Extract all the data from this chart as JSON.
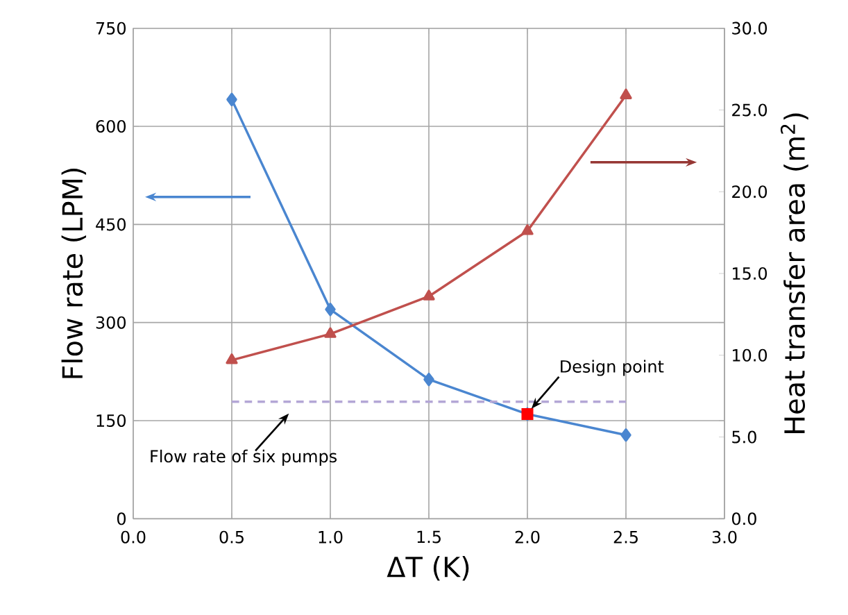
{
  "chart_data": {
    "type": "line",
    "xlabel": "ΔT (K)",
    "ylabel": "Flow rate (LPM)",
    "y2label": "Heat transfer area (m$^{2}$)",
    "xlim": [
      0,
      3
    ],
    "xticks": [
      {
        "value": 0,
        "label": "0.0"
      },
      {
        "value": 0.5,
        "label": "0.5"
      },
      {
        "value": 1,
        "label": "1.0"
      },
      {
        "value": 1.5,
        "label": "1.5"
      },
      {
        "value": 2,
        "label": "2.0"
      },
      {
        "value": 2.5,
        "label": "2.5"
      },
      {
        "value": 3,
        "label": "3.0"
      }
    ],
    "ylim": [
      0,
      750
    ],
    "yticks": [
      0,
      150,
      300,
      450,
      600,
      750
    ],
    "y2lim": [
      0,
      30
    ],
    "y2ticks": [
      {
        "value": 0,
        "label": "0.0"
      },
      {
        "value": 5,
        "label": "5.0"
      },
      {
        "value": 10,
        "label": "10.0"
      },
      {
        "value": 15,
        "label": "15.0"
      },
      {
        "value": 20,
        "label": "20.0"
      },
      {
        "value": 25,
        "label": "25.0"
      },
      {
        "value": 30,
        "label": "30.0"
      }
    ],
    "grid": true,
    "series": [
      {
        "color": "#4a86d0",
        "marker": "diamond",
        "x": [
          0.5,
          1,
          1.5,
          2,
          2.5
        ],
        "values": [
          641,
          320,
          213,
          160,
          128
        ]
      },
      {
        "color": "#c0504d",
        "marker": "triangle",
        "axis": "y2",
        "x": [
          0.5,
          1,
          1.5,
          2,
          2.5
        ],
        "values": [
          9.7,
          11.3,
          13.6,
          17.6,
          25.9
        ]
      },
      {
        "type": "line",
        "color": "#b4a7d6",
        "marker": "none",
        "line_style": "dashed",
        "x": [
          0.5,
          2.5
        ],
        "values": [
          179,
          179
        ]
      },
      {
        "type": "scatter",
        "color": "#ff0000",
        "marker": "square",
        "x": [
          2
        ],
        "values": [
          160
        ]
      }
    ],
    "annotations": [
      "Design point",
      "Flow rate of six pumps"
    ]
  }
}
